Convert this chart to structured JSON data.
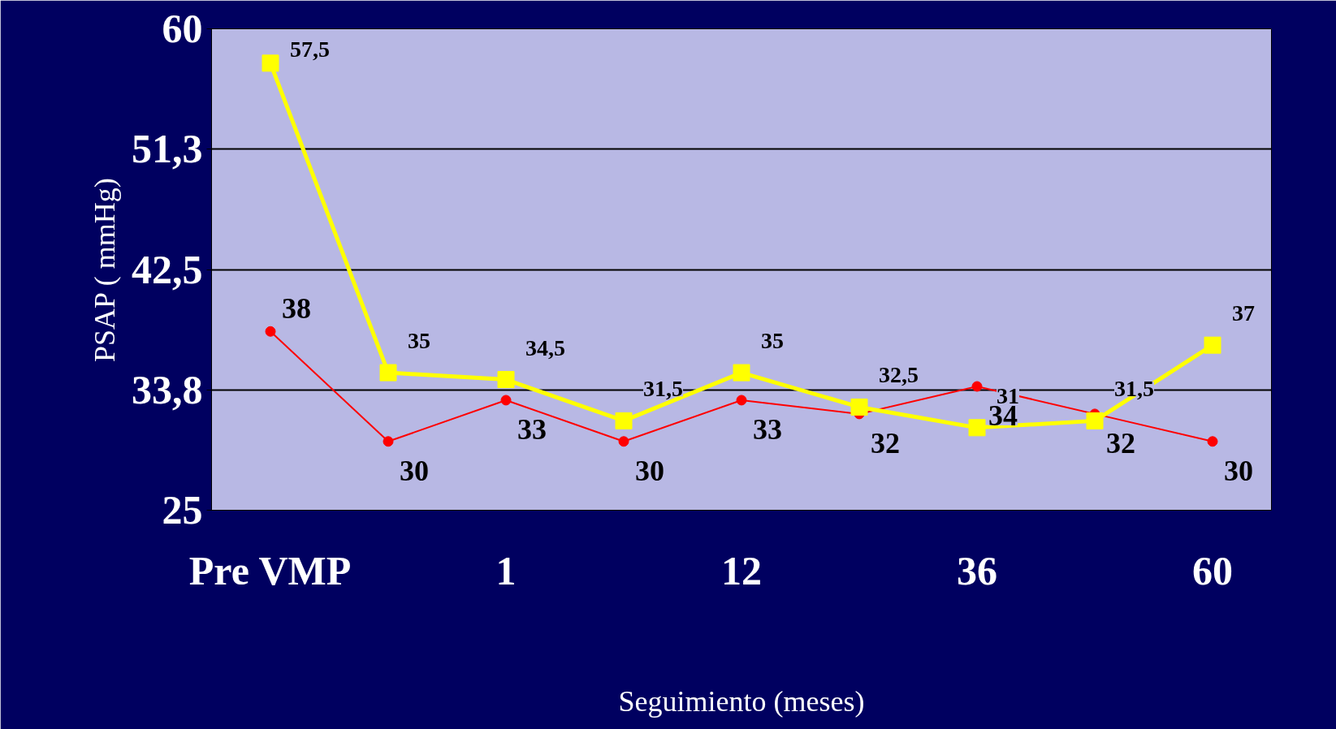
{
  "chart_data": {
    "type": "line",
    "xlabel": "Seguimiento (meses)",
    "ylabel": "PSAP ( mmHg)",
    "categories": [
      "Pre VMP",
      null,
      "1",
      null,
      "12",
      null,
      "36",
      null,
      "60"
    ],
    "ylim": [
      25,
      60
    ],
    "yticks": [
      25,
      {
        "value": 33.75,
        "label": "33,8"
      },
      {
        "value": 42.5,
        "label": "42,5"
      },
      {
        "value": 51.25,
        "label": "51,3"
      },
      60
    ],
    "grid": "y",
    "series": [
      {
        "color": "#ff0000",
        "marker": "circle",
        "values": [
          38,
          30,
          33,
          30,
          33,
          32,
          34,
          32,
          30
        ],
        "value_labels": [
          "38",
          "30",
          "33",
          "30",
          "33",
          "32",
          "34",
          "32",
          "30"
        ]
      },
      {
        "color": "#ffff00",
        "marker": "square",
        "values": [
          57.5,
          35,
          34.5,
          31.5,
          35,
          32.5,
          31,
          31.5,
          37
        ],
        "value_labels": [
          "57,5",
          "35",
          "34,5",
          "31,5",
          "35",
          "32,5",
          "31",
          "31,5",
          "37"
        ]
      }
    ]
  }
}
